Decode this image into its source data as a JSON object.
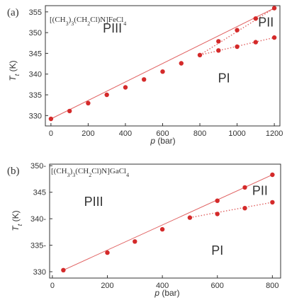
{
  "chart_data": [
    {
      "type": "scatter",
      "panel_label": "(a)",
      "compound_parts": [
        "[(CH",
        "3",
        ")",
        "3",
        "(CH",
        "2",
        "Cl)N]FeCl",
        "4"
      ],
      "xlabel_var": "p",
      "xlabel_unit": "(bar)",
      "ylabel_var": "T",
      "ylabel_sub": "t",
      "ylabel_unit": "(K)",
      "xlim": [
        -30,
        1230
      ],
      "ylim": [
        327.5,
        356.5
      ],
      "xticks": [
        0,
        200,
        400,
        600,
        800,
        1000,
        1200
      ],
      "yticks": [
        330,
        335,
        340,
        345,
        350,
        355
      ],
      "regions": [
        {
          "label": "PIII",
          "x": 330,
          "y": 350
        },
        {
          "label": "PI",
          "x": 930,
          "y": 338
        },
        {
          "label": "PII",
          "x": 1155,
          "y": 351.5
        }
      ],
      "series": [
        {
          "style": "points",
          "x": [
            0,
            100,
            200,
            300,
            400,
            500,
            600,
            700,
            800,
            900,
            1000,
            1100,
            1200
          ],
          "y": [
            329.2,
            331.1,
            333.0,
            335.0,
            336.8,
            338.7,
            340.6,
            342.6,
            344.6,
            345.7,
            346.6,
            347.7,
            348.8
          ]
        },
        {
          "style": "points",
          "x": [
            900,
            1000,
            1100,
            1200
          ],
          "y": [
            347.9,
            350.6,
            353.4,
            355.9
          ]
        },
        {
          "style": "line",
          "x": [
            0,
            1200
          ],
          "y": [
            329.2,
            355.9
          ]
        },
        {
          "style": "dotted",
          "x": [
            800,
            1200
          ],
          "y": [
            344.6,
            348.8
          ]
        },
        {
          "style": "dotted",
          "x": [
            800,
            1200
          ],
          "y": [
            344.6,
            355.9
          ]
        }
      ]
    },
    {
      "type": "scatter",
      "panel_label": "(b)",
      "compound_parts": [
        "[(CH",
        "3",
        ")",
        "3",
        "(CH",
        "2",
        "Cl)N]GaCl",
        "4"
      ],
      "xlabel_var": "p",
      "xlabel_unit": "(bar)",
      "ylabel_var": "T",
      "ylabel_sub": "t",
      "ylabel_unit": "(K)",
      "xlim": [
        -10,
        830
      ],
      "ylim": [
        328.8,
        350.3
      ],
      "xticks": [
        0,
        200,
        400,
        600,
        800
      ],
      "yticks": [
        330,
        335,
        340,
        345,
        350
      ],
      "ytick_labels": [
        "330",
        "335-",
        "340-",
        "345",
        "350-"
      ],
      "regions": [
        {
          "label": "PIII",
          "x": 150,
          "y": 342.4
        },
        {
          "label": "PI",
          "x": 600,
          "y": 333.2
        },
        {
          "label": "PII",
          "x": 755,
          "y": 344.5
        }
      ],
      "series": [
        {
          "style": "points",
          "x": [
            40,
            200,
            300,
            400,
            500,
            600,
            700,
            800
          ],
          "y": [
            330.3,
            333.6,
            335.7,
            338.0,
            340.2,
            340.9,
            342.0,
            343.1
          ]
        },
        {
          "style": "points",
          "x": [
            600,
            700,
            800
          ],
          "y": [
            343.4,
            345.9,
            348.3
          ]
        },
        {
          "style": "line",
          "x": [
            40,
            800
          ],
          "y": [
            330.3,
            348.3
          ]
        },
        {
          "style": "dotted",
          "x": [
            500,
            800
          ],
          "y": [
            340.2,
            343.1
          ]
        }
      ]
    }
  ]
}
